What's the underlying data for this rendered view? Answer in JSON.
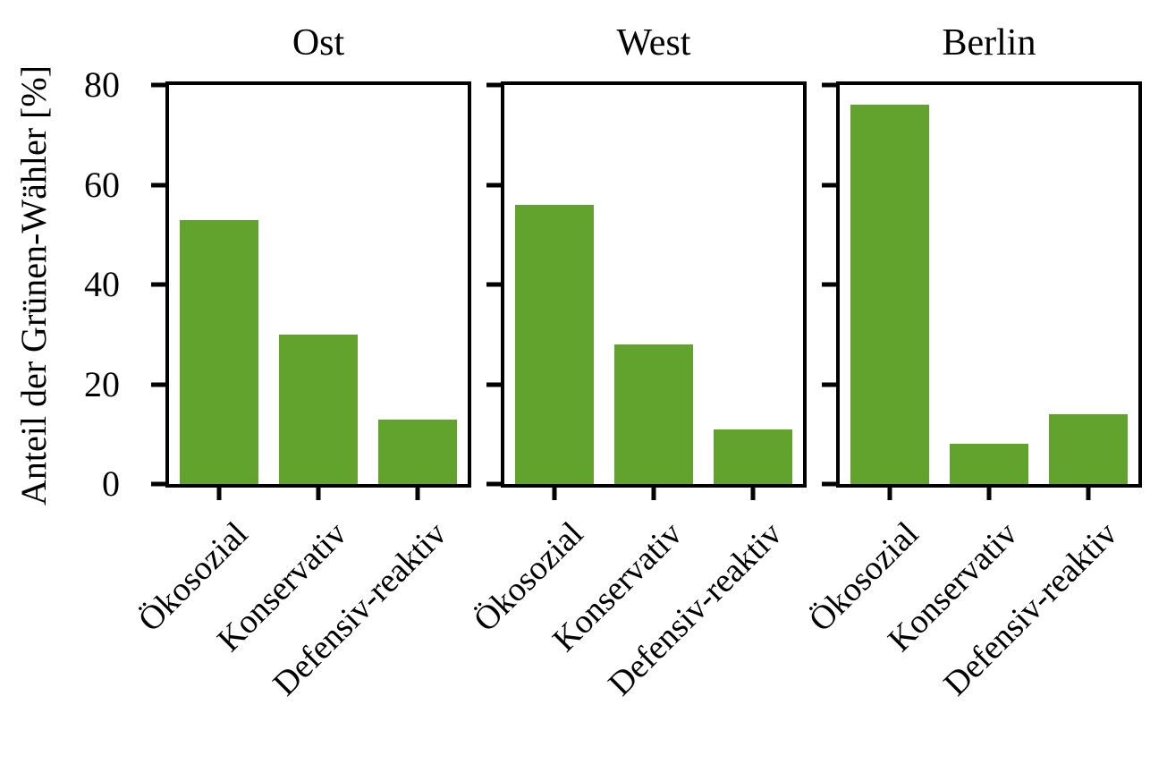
{
  "figure": {
    "background": "#ffffff",
    "text_color": "#000000"
  },
  "chart_data": {
    "type": "bar",
    "title": "",
    "ylabel": "Anteil der Grünen-Wähler [%]",
    "xlabel": "",
    "ylim": [
      0,
      80
    ],
    "yticks": [
      0,
      20,
      40,
      60,
      80
    ],
    "ytick_labels": [
      "0",
      "20",
      "40",
      "60",
      "80"
    ],
    "grid": false,
    "legend_position": "none",
    "bar_color": "#62a32d",
    "axis_color": "#000000",
    "categories": [
      "Ökosozial",
      "Konservativ",
      "Defensiv-reaktiv"
    ],
    "panels": [
      {
        "title": "Ost",
        "values": [
          53,
          30,
          13
        ]
      },
      {
        "title": "West",
        "values": [
          56,
          28,
          11
        ]
      },
      {
        "title": "Berlin",
        "values": [
          76,
          8,
          14
        ]
      }
    ]
  }
}
